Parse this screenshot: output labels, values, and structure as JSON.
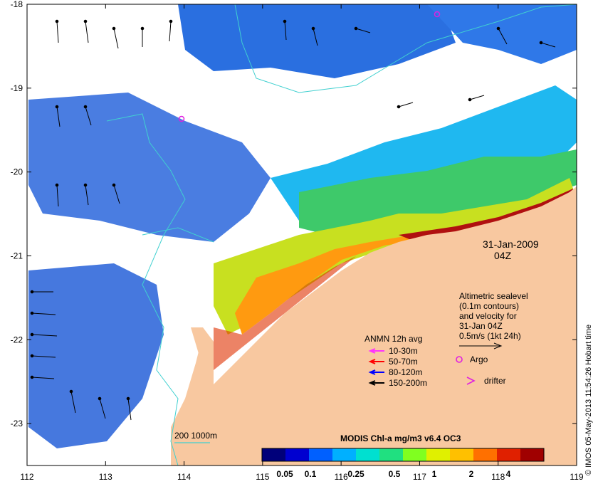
{
  "map": {
    "lon_ticks": [
      "112",
      "113",
      "114",
      "115",
      "116",
      "117",
      "118",
      "119"
    ],
    "lat_ticks": [
      "-18",
      "-19",
      "-20",
      "-21",
      "-22",
      "-23"
    ],
    "lon_range": [
      112,
      119
    ],
    "lat_range": [
      -23.5,
      -18
    ],
    "land_color": "#f8c8a0",
    "date_label": "31-Jan-2009",
    "time_label": "04Z"
  },
  "altimetry_note": {
    "line1": "Altimetric sealevel",
    "line2": "(0.1m contours)",
    "line3": "and velocity for",
    "line4": "31-Jan 04Z",
    "scale_label": "0.5m/s (1kt 24h)"
  },
  "anmn_legend": {
    "title": "ANMN 12h avg",
    "items": [
      {
        "label": "10-30m",
        "color": "#ff33ff"
      },
      {
        "label": "50-70m",
        "color": "#ff0000"
      },
      {
        "label": "80-120m",
        "color": "#0000ff"
      },
      {
        "label": "150-200m",
        "color": "#000000"
      }
    ],
    "argo_label": "Argo",
    "drifter_label": "drifter",
    "marker_color": "#e020e0"
  },
  "bathymetry": {
    "label": "200  1000m",
    "color": "#40d0d0"
  },
  "colorbar": {
    "title": "MODIS Chl-a mg/m3 v6.4 OC3",
    "tick_labels": [
      "0.05",
      "0.1",
      "0.25",
      "0.5",
      "1",
      "2",
      "4"
    ],
    "colors": [
      "#00007a",
      "#0000d0",
      "#0060ff",
      "#00b0ff",
      "#00e0d0",
      "#20e080",
      "#80ff20",
      "#e0f000",
      "#ffc000",
      "#ff7000",
      "#e02000",
      "#a00000"
    ]
  },
  "credit": "© IMOS 05-May-2013 11:54:26 Hobart time"
}
